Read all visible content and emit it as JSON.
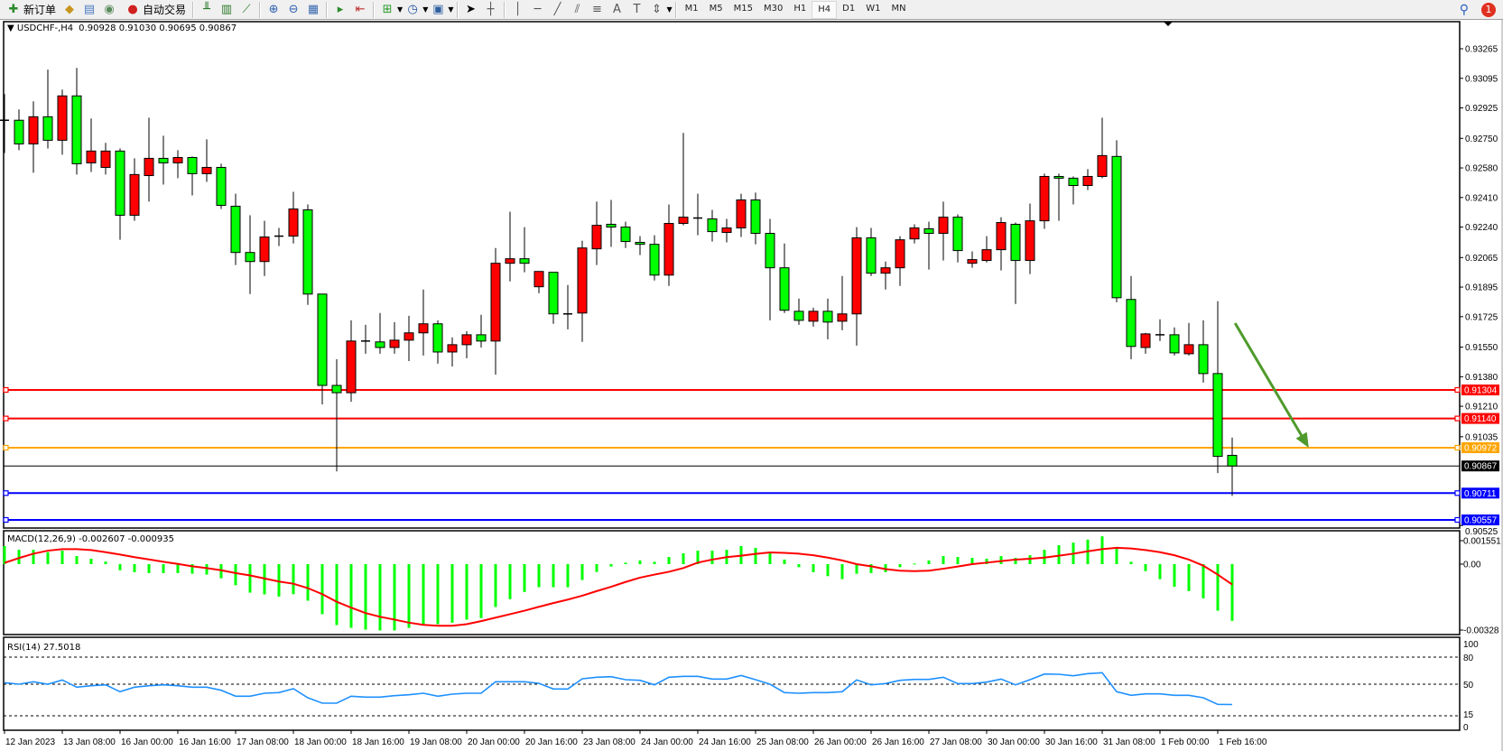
{
  "toolbar": {
    "new_order": "新订单",
    "auto_trading": "自动交易",
    "icons": [
      "new-order-icon",
      "gold-icon",
      "terminal-icon",
      "signals-icon",
      "auto-trading-icon",
      "bar-chart-icon",
      "candlestick-icon",
      "line-chart-icon",
      "zoom-in-icon",
      "zoom-out-icon",
      "tile-windows-icon",
      "auto-scroll-icon",
      "chart-shift-icon",
      "indicators-icon",
      "periods-icon",
      "templates-icon",
      "cursor-icon",
      "crosshair-icon",
      "vertical-line-icon",
      "horizontal-line-icon",
      "trendline-icon",
      "equidistant-channel-icon",
      "fibonacci-icon",
      "text-icon",
      "text-label-icon",
      "arrows-icon"
    ],
    "timeframes": [
      "M1",
      "M5",
      "M15",
      "M30",
      "H1",
      "H4",
      "D1",
      "W1",
      "MN"
    ],
    "active_timeframe": "H4",
    "text_tool": "A",
    "notifications": "1"
  },
  "chart_data": {
    "type": "candlestick",
    "symbol": "USDCHF-,H4",
    "ohlc_header": "0.90928 0.91030 0.90695 0.90867",
    "colors": {
      "bull": "#ff0000",
      "bear": "#00ff00",
      "outline": "#000000"
    },
    "price_ticks": [
      "0.93265",
      "0.93095",
      "0.92925",
      "0.92750",
      "0.92580",
      "0.92410",
      "0.92240",
      "0.92065",
      "0.91895",
      "0.91725",
      "0.91550",
      "0.91380",
      "0.91210",
      "0.91035",
      "0.90525"
    ],
    "time_labels": [
      "12 Jan 2023",
      "13 Jan 08:00",
      "16 Jan 00:00",
      "16 Jan 16:00",
      "17 Jan 08:00",
      "18 Jan 00:00",
      "18 Jan 16:00",
      "19 Jan 08:00",
      "20 Jan 00:00",
      "20 Jan 16:00",
      "23 Jan 08:00",
      "24 Jan 00:00",
      "24 Jan 16:00",
      "25 Jan 08:00",
      "26 Jan 00:00",
      "26 Jan 16:00",
      "27 Jan 08:00",
      "30 Jan 00:00",
      "30 Jan 16:00",
      "31 Jan 08:00",
      "1 Feb 00:00",
      "1 Feb 16:00"
    ],
    "time_label_every_bars": 4,
    "candles_ohlc": [
      [
        0.92854,
        0.93004,
        0.92666,
        0.92848
      ],
      [
        0.92854,
        0.92916,
        0.92682,
        0.92718
      ],
      [
        0.92718,
        0.92963,
        0.92552,
        0.92874
      ],
      [
        0.92874,
        0.93145,
        0.92692,
        0.92739
      ],
      [
        0.92739,
        0.9303,
        0.92656,
        0.92994
      ],
      [
        0.92994,
        0.93155,
        0.92542,
        0.92604
      ],
      [
        0.92609,
        0.92864,
        0.92557,
        0.92677
      ],
      [
        0.92583,
        0.92724,
        0.92542,
        0.92677
      ],
      [
        0.92677,
        0.92692,
        0.92167,
        0.92308
      ],
      [
        0.92308,
        0.92635,
        0.92276,
        0.92542
      ],
      [
        0.92536,
        0.92869,
        0.92386,
        0.92635
      ],
      [
        0.92635,
        0.92765,
        0.92484,
        0.92609
      ],
      [
        0.92609,
        0.92682,
        0.92521,
        0.9264
      ],
      [
        0.9264,
        0.92646,
        0.92422,
        0.92547
      ],
      [
        0.92547,
        0.92744,
        0.925,
        0.92583
      ],
      [
        0.92583,
        0.92604,
        0.92344,
        0.92365
      ],
      [
        0.9236,
        0.92432,
        0.92022,
        0.92094
      ],
      [
        0.92094,
        0.92308,
        0.91855,
        0.92042
      ],
      [
        0.92042,
        0.92276,
        0.91959,
        0.92183
      ],
      [
        0.92188,
        0.92235,
        0.92131,
        0.92186
      ],
      [
        0.92188,
        0.92443,
        0.92146,
        0.92344
      ],
      [
        0.92339,
        0.9237,
        0.91793,
        0.91855
      ],
      [
        0.91855,
        0.91855,
        0.91221,
        0.9133
      ],
      [
        0.9133,
        0.91481,
        0.90836,
        0.91288
      ],
      [
        0.91288,
        0.91704,
        0.91236,
        0.91585
      ],
      [
        0.91585,
        0.91678,
        0.91512,
        0.91585
      ],
      [
        0.9158,
        0.91746,
        0.91512,
        0.91548
      ],
      [
        0.91548,
        0.91694,
        0.91512,
        0.9159
      ],
      [
        0.9159,
        0.9173,
        0.9147,
        0.91632
      ],
      [
        0.91632,
        0.91881,
        0.91502,
        0.91684
      ],
      [
        0.91684,
        0.91704,
        0.91455,
        0.91522
      ],
      [
        0.91522,
        0.91606,
        0.91439,
        0.91564
      ],
      [
        0.91564,
        0.91642,
        0.91486,
        0.91621
      ],
      [
        0.91621,
        0.91736,
        0.91548,
        0.91585
      ],
      [
        0.91585,
        0.9212,
        0.91392,
        0.92032
      ],
      [
        0.92032,
        0.92328,
        0.91928,
        0.92058
      ],
      [
        0.92058,
        0.9224,
        0.9198,
        0.92032
      ],
      [
        0.91897,
        0.91985,
        0.9186,
        0.91985
      ],
      [
        0.9198,
        0.9198,
        0.91684,
        0.91741
      ],
      [
        0.91741,
        0.91907,
        0.91652,
        0.91741
      ],
      [
        0.91746,
        0.92162,
        0.9158,
        0.9212
      ],
      [
        0.92115,
        0.92386,
        0.92022,
        0.9225
      ],
      [
        0.92256,
        0.92396,
        0.92126,
        0.9224
      ],
      [
        0.9224,
        0.92271,
        0.9212,
        0.92157
      ],
      [
        0.92152,
        0.92188,
        0.92079,
        0.92141
      ],
      [
        0.92141,
        0.92193,
        0.91933,
        0.91964
      ],
      [
        0.91964,
        0.9237,
        0.91902,
        0.92261
      ],
      [
        0.92261,
        0.92781,
        0.9225,
        0.92297
      ],
      [
        0.92292,
        0.92432,
        0.92193,
        0.92292
      ],
      [
        0.92287,
        0.92339,
        0.92157,
        0.92214
      ],
      [
        0.92209,
        0.92287,
        0.92152,
        0.92235
      ],
      [
        0.92235,
        0.92432,
        0.92183,
        0.92396
      ],
      [
        0.92396,
        0.92438,
        0.92141,
        0.92204
      ],
      [
        0.92204,
        0.92287,
        0.91704,
        0.92006
      ],
      [
        0.92006,
        0.92146,
        0.91746,
        0.91762
      ],
      [
        0.91756,
        0.91829,
        0.91678,
        0.91704
      ],
      [
        0.91699,
        0.91777,
        0.91668,
        0.91756
      ],
      [
        0.91756,
        0.91829,
        0.91595,
        0.91694
      ],
      [
        0.91699,
        0.91959,
        0.91647,
        0.91741
      ],
      [
        0.91741,
        0.9224,
        0.91559,
        0.92178
      ],
      [
        0.92178,
        0.92235,
        0.91959,
        0.91975
      ],
      [
        0.91975,
        0.92042,
        0.91881,
        0.92006
      ],
      [
        0.92006,
        0.92188,
        0.91902,
        0.92167
      ],
      [
        0.92172,
        0.92256,
        0.92146,
        0.92235
      ],
      [
        0.9223,
        0.92271,
        0.91996,
        0.92204
      ],
      [
        0.92204,
        0.92386,
        0.92048,
        0.92297
      ],
      [
        0.92297,
        0.92313,
        0.92037,
        0.92105
      ],
      [
        0.92032,
        0.921,
        0.92006,
        0.92053
      ],
      [
        0.92048,
        0.92188,
        0.92037,
        0.9211
      ],
      [
        0.9211,
        0.92297,
        0.91991,
        0.92266
      ],
      [
        0.92256,
        0.92266,
        0.91798,
        0.92048
      ],
      [
        0.92048,
        0.92375,
        0.9197,
        0.92276
      ],
      [
        0.92276,
        0.92547,
        0.9223,
        0.92531
      ],
      [
        0.92531,
        0.92547,
        0.92276,
        0.92521
      ],
      [
        0.92521,
        0.92531,
        0.9237,
        0.92479
      ],
      [
        0.92479,
        0.92573,
        0.92453,
        0.92531
      ],
      [
        0.92531,
        0.92869,
        0.92521,
        0.92651
      ],
      [
        0.92646,
        0.92739,
        0.91808,
        0.91834
      ],
      [
        0.91824,
        0.91959,
        0.91481,
        0.91554
      ],
      [
        0.91548,
        0.91632,
        0.91512,
        0.91626
      ],
      [
        0.91621,
        0.9171,
        0.91585,
        0.91621
      ],
      [
        0.91621,
        0.91663,
        0.91502,
        0.91517
      ],
      [
        0.91512,
        0.91689,
        0.91502,
        0.91564
      ],
      [
        0.91564,
        0.91704,
        0.91346,
        0.91398
      ],
      [
        0.91398,
        0.91814,
        0.90826,
        0.90922
      ],
      [
        0.90928,
        0.9103,
        0.90695,
        0.90867
      ]
    ],
    "horizontal_lines": [
      {
        "price": 0.91304,
        "label": "0.91304",
        "color": "#ff0000"
      },
      {
        "price": 0.9114,
        "label": "0.91140",
        "color": "#ff0000"
      },
      {
        "price": 0.90972,
        "label": "0.90972",
        "color": "#ffa500"
      },
      {
        "price": 0.90711,
        "label": "0.90711",
        "color": "#0000ff"
      },
      {
        "price": 0.90557,
        "label": "0.90557",
        "color": "#0000ff"
      }
    ],
    "bid_line": {
      "price": 0.90867,
      "label": "0.90867",
      "color": "#000000"
    },
    "arrow": {
      "color": "#4f9a2c",
      "from": {
        "bar": 85.2,
        "price": 0.91688
      },
      "to": {
        "bar": 90.3,
        "price": 0.90972
      }
    },
    "macd": {
      "label": "MACD(12,26,9) -0.002607 -0.000935",
      "ticks": [
        "0.001551",
        "0.00",
        "-0.00328"
      ],
      "histogram_color": "#00ff00",
      "signal_color": "#ff0000",
      "histogram": [
        0.00083,
        0.00066,
        0.00066,
        0.00055,
        0.00062,
        0.00037,
        0.00025,
        0.00012,
        -0.00028,
        -0.00037,
        -0.00041,
        -0.00041,
        -0.00041,
        -0.00044,
        -0.00048,
        -0.00065,
        -0.00097,
        -0.00131,
        -0.00139,
        -0.00149,
        -0.00138,
        -0.00168,
        -0.0023,
        -0.0028,
        -0.00293,
        -0.00301,
        -0.00305,
        -0.00305,
        -0.00293,
        -0.0028,
        -0.00276,
        -0.00269,
        -0.00255,
        -0.00248,
        -0.00197,
        -0.00161,
        -0.00128,
        -0.00106,
        -0.00106,
        -0.00106,
        -0.00073,
        -0.00036,
        -0.00011,
        7e-05,
        0.00017,
        0.00011,
        0.00033,
        0.0005,
        0.00062,
        0.00062,
        0.00066,
        0.00083,
        0.00075,
        0.0005,
        0.00021,
        -0.00014,
        -0.00037,
        -0.00055,
        -0.00069,
        -0.00044,
        -0.00041,
        -0.00037,
        -0.00014,
        3e-05,
        0.00017,
        0.00037,
        0.00033,
        0.00029,
        0.00025,
        0.00037,
        0.00029,
        0.00041,
        0.00066,
        0.00087,
        0.00099,
        0.00113,
        0.00128,
        0.00079,
        0.00011,
        -0.00032,
        -0.00069,
        -0.00104,
        -0.00124,
        -0.00157,
        -0.00214,
        -0.002607
      ],
      "signal": [
        6e-05,
        0.00028,
        0.00048,
        0.00062,
        0.00069,
        0.00069,
        0.00065,
        0.00055,
        0.00044,
        0.00032,
        0.00022,
        0.00011,
        1e-05,
        -0.0001,
        -0.00018,
        -0.00028,
        -0.00041,
        -0.00052,
        -0.00066,
        -0.0008,
        -0.0009,
        -0.0011,
        -0.00138,
        -0.00173,
        -0.002,
        -0.00225,
        -0.00242,
        -0.00255,
        -0.00269,
        -0.00279,
        -0.00283,
        -0.00283,
        -0.00276,
        -0.00262,
        -0.00246,
        -0.0023,
        -0.00214,
        -0.00196,
        -0.00179,
        -0.00163,
        -0.00145,
        -0.00124,
        -0.00104,
        -0.00082,
        -0.00062,
        -0.00048,
        -0.00035,
        -0.00018,
        7e-05,
        0.00021,
        0.00032,
        0.00039,
        0.00047,
        0.00054,
        0.00052,
        0.00048,
        0.00041,
        0.0003,
        0.00017,
        0.0,
        -0.0001,
        -0.00023,
        -0.0003,
        -0.00032,
        -0.0003,
        -0.00021,
        -0.00011,
        0.0,
        7e-05,
        0.00014,
        0.00021,
        0.00025,
        0.0003,
        0.00039,
        0.00048,
        0.00059,
        0.00069,
        0.00075,
        0.00072,
        0.00065,
        0.00055,
        0.00041,
        0.00021,
        -7e-05,
        -0.00048,
        -0.000935
      ]
    },
    "rsi": {
      "label": "RSI(14) 27.5018",
      "ticks": [
        "100",
        "80",
        "50",
        "15",
        "0"
      ],
      "levels": [
        80,
        50,
        15
      ],
      "range": [
        0,
        100
      ],
      "color": "#1e90ff",
      "values": [
        51.7,
        50,
        52.7,
        50,
        54.7,
        46.7,
        48.3,
        49.3,
        41.7,
        46.7,
        48.3,
        49.3,
        48.3,
        46.7,
        46.7,
        43.3,
        36.7,
        36.7,
        40,
        40.7,
        45,
        35,
        29,
        29,
        36.7,
        35.7,
        35.7,
        37.3,
        38.3,
        40,
        36.7,
        39,
        40,
        40,
        52.7,
        52.7,
        52.7,
        51,
        44.7,
        44.7,
        56,
        57.7,
        58.3,
        55,
        54.3,
        49.3,
        57.7,
        58.7,
        58.7,
        55.7,
        55.7,
        59.7,
        55,
        50,
        40.7,
        40,
        40.7,
        40.7,
        41.7,
        54.7,
        49.3,
        50.7,
        54.3,
        55.3,
        55.3,
        57.7,
        50.7,
        50.7,
        52.3,
        55.7,
        49.3,
        55,
        61.3,
        61,
        59.3,
        61.7,
        62.7,
        41.7,
        37.7,
        39.3,
        39.3,
        37.7,
        37.7,
        35,
        27.7,
        27.5
      ]
    }
  }
}
